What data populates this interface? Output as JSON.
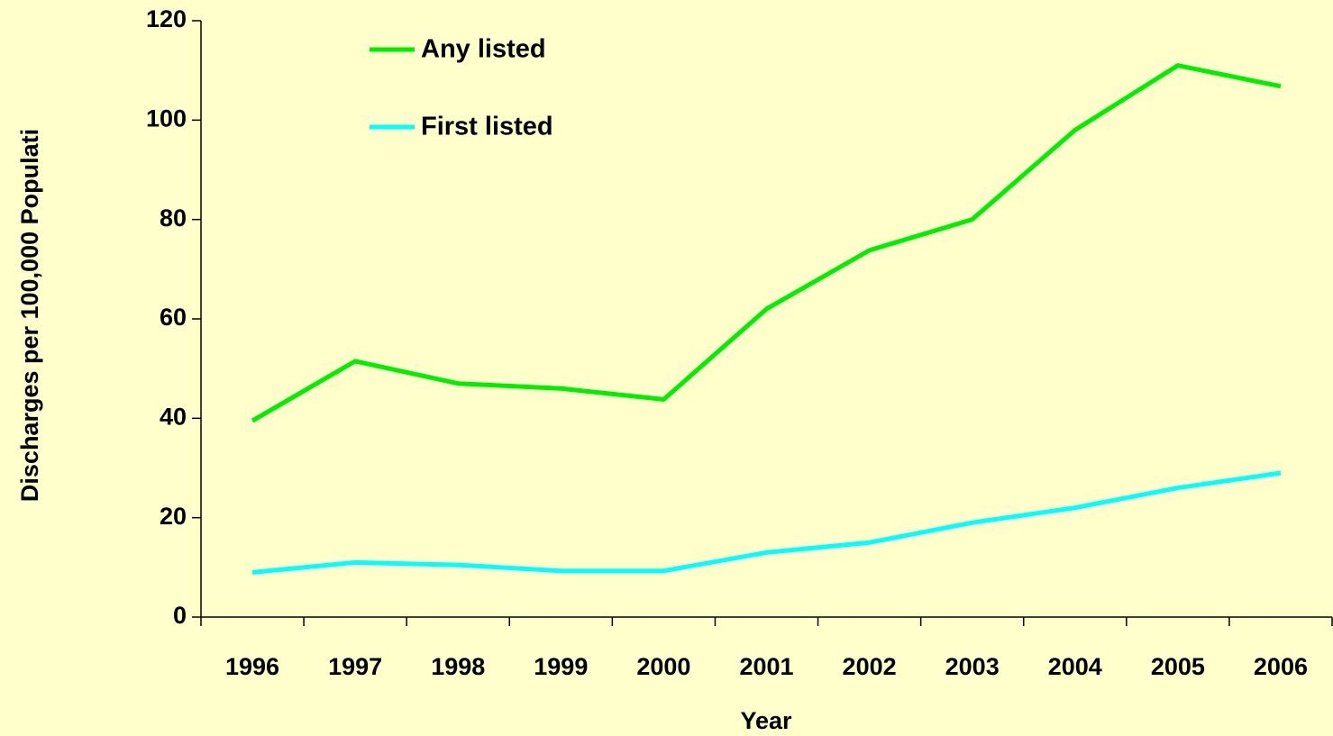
{
  "chart_data": {
    "type": "line",
    "x_label": "Year",
    "y_label": "Discharges per 100,000 Populati",
    "categories": [
      "1996",
      "1997",
      "1998",
      "1999",
      "2000",
      "2001",
      "2002",
      "2003",
      "2004",
      "2005",
      "2006"
    ],
    "series": [
      {
        "name": "Any listed",
        "color": "#00ee00",
        "values": [
          39.5,
          51.5,
          47,
          46,
          43.8,
          62,
          73.8,
          80,
          98,
          111,
          106.8
        ]
      },
      {
        "name": "First listed",
        "color": "#00ffff",
        "values": [
          9,
          11,
          10.5,
          9.3,
          9.3,
          13,
          15,
          19,
          22,
          26,
          29
        ]
      }
    ],
    "ylim": [
      0,
      120
    ],
    "yticks": [
      0,
      20,
      40,
      60,
      80,
      100,
      120
    ]
  }
}
